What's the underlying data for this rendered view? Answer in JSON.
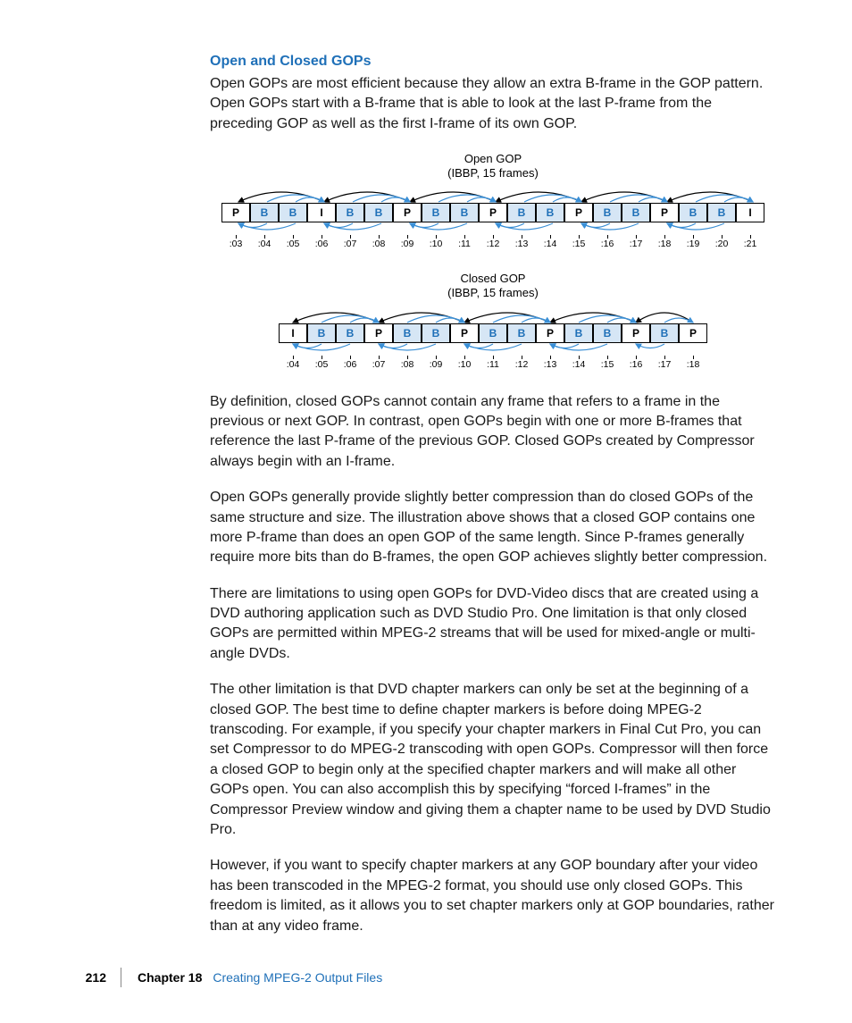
{
  "heading": "Open and Closed GOPs",
  "para1": "Open GOPs are most efficient because they allow an extra B-frame in the GOP pattern. Open GOPs start with a B-frame that is able to look at the last P-frame from the preceding GOP as well as the first I-frame of its own GOP.",
  "para2": "By definition, closed GOPs cannot contain any frame that refers to a frame in the previous or next GOP. In contrast, open GOPs begin with one or more B-frames that reference the last P-frame of the previous GOP. Closed GOPs created by Compressor always begin with an I-frame.",
  "para3": "Open GOPs generally provide slightly better compression than do closed GOPs of the same structure and size. The illustration above shows that a closed GOP contains one more P-frame than does an open GOP of the same length. Since P-frames generally require more bits than do B-frames, the open GOP achieves slightly better compression.",
  "para4": "There are limitations to using open GOPs for DVD-Video discs that are created using a DVD authoring application such as DVD Studio Pro. One limitation is that only closed GOPs are permitted within MPEG-2 streams that will be used for mixed-angle or multi-angle DVDs.",
  "para5": "The other limitation is that DVD chapter markers can only be set at the beginning of a closed GOP. The best time to define chapter markers is before doing MPEG-2 transcoding. For example, if you specify your chapter markers in Final Cut Pro, you can set Compressor to do MPEG-2 transcoding with open GOPs. Compressor will then force a closed GOP to begin only at the specified chapter markers and will make all other GOPs open. You can also accomplish this by specifying “forced I-frames” in the Compressor Preview window and giving them a chapter name to be used by DVD Studio Pro.",
  "para6": "However, if you want to specify chapter markers at any GOP boundary after your video has been transcoded in the MPEG-2 format, you should use only closed GOPs. This freedom is limited, as it allows you to set chapter markers only at GOP boundaries, rather than at any video frame.",
  "open_gop": {
    "title_line1": "Open GOP",
    "title_line2": "(IBBP, 15 frames)",
    "frames": [
      "P",
      "B",
      "B",
      "I",
      "B",
      "B",
      "P",
      "B",
      "B",
      "P",
      "B",
      "B",
      "P",
      "B",
      "B",
      "P",
      "B",
      "B",
      "I"
    ],
    "ticks": [
      ":03",
      ":04",
      ":05",
      ":06",
      ":07",
      ":08",
      ":09",
      ":10",
      ":11",
      ":12",
      ":13",
      ":14",
      ":15",
      ":16",
      ":17",
      ":18",
      ":19",
      ":20",
      ":21"
    ]
  },
  "closed_gop": {
    "title_line1": "Closed GOP",
    "title_line2": "(IBBP, 15 frames)",
    "frames": [
      "I",
      "B",
      "B",
      "P",
      "B",
      "B",
      "P",
      "B",
      "B",
      "P",
      "B",
      "B",
      "P",
      "B",
      "P"
    ],
    "ticks": [
      ":04",
      ":05",
      ":06",
      ":07",
      ":08",
      ":09",
      ":10",
      ":11",
      ":12",
      ":13",
      ":14",
      ":15",
      ":16",
      ":17",
      ":18"
    ]
  },
  "colors": {
    "blue_text": "#1f70b8",
    "b_fill": "#d6e6f5",
    "black": "#000000",
    "arrow_blue": "#3a8fd6"
  },
  "footer": {
    "page": "212",
    "chapter": "Chapter 18",
    "title": "Creating MPEG-2 Output Files"
  }
}
